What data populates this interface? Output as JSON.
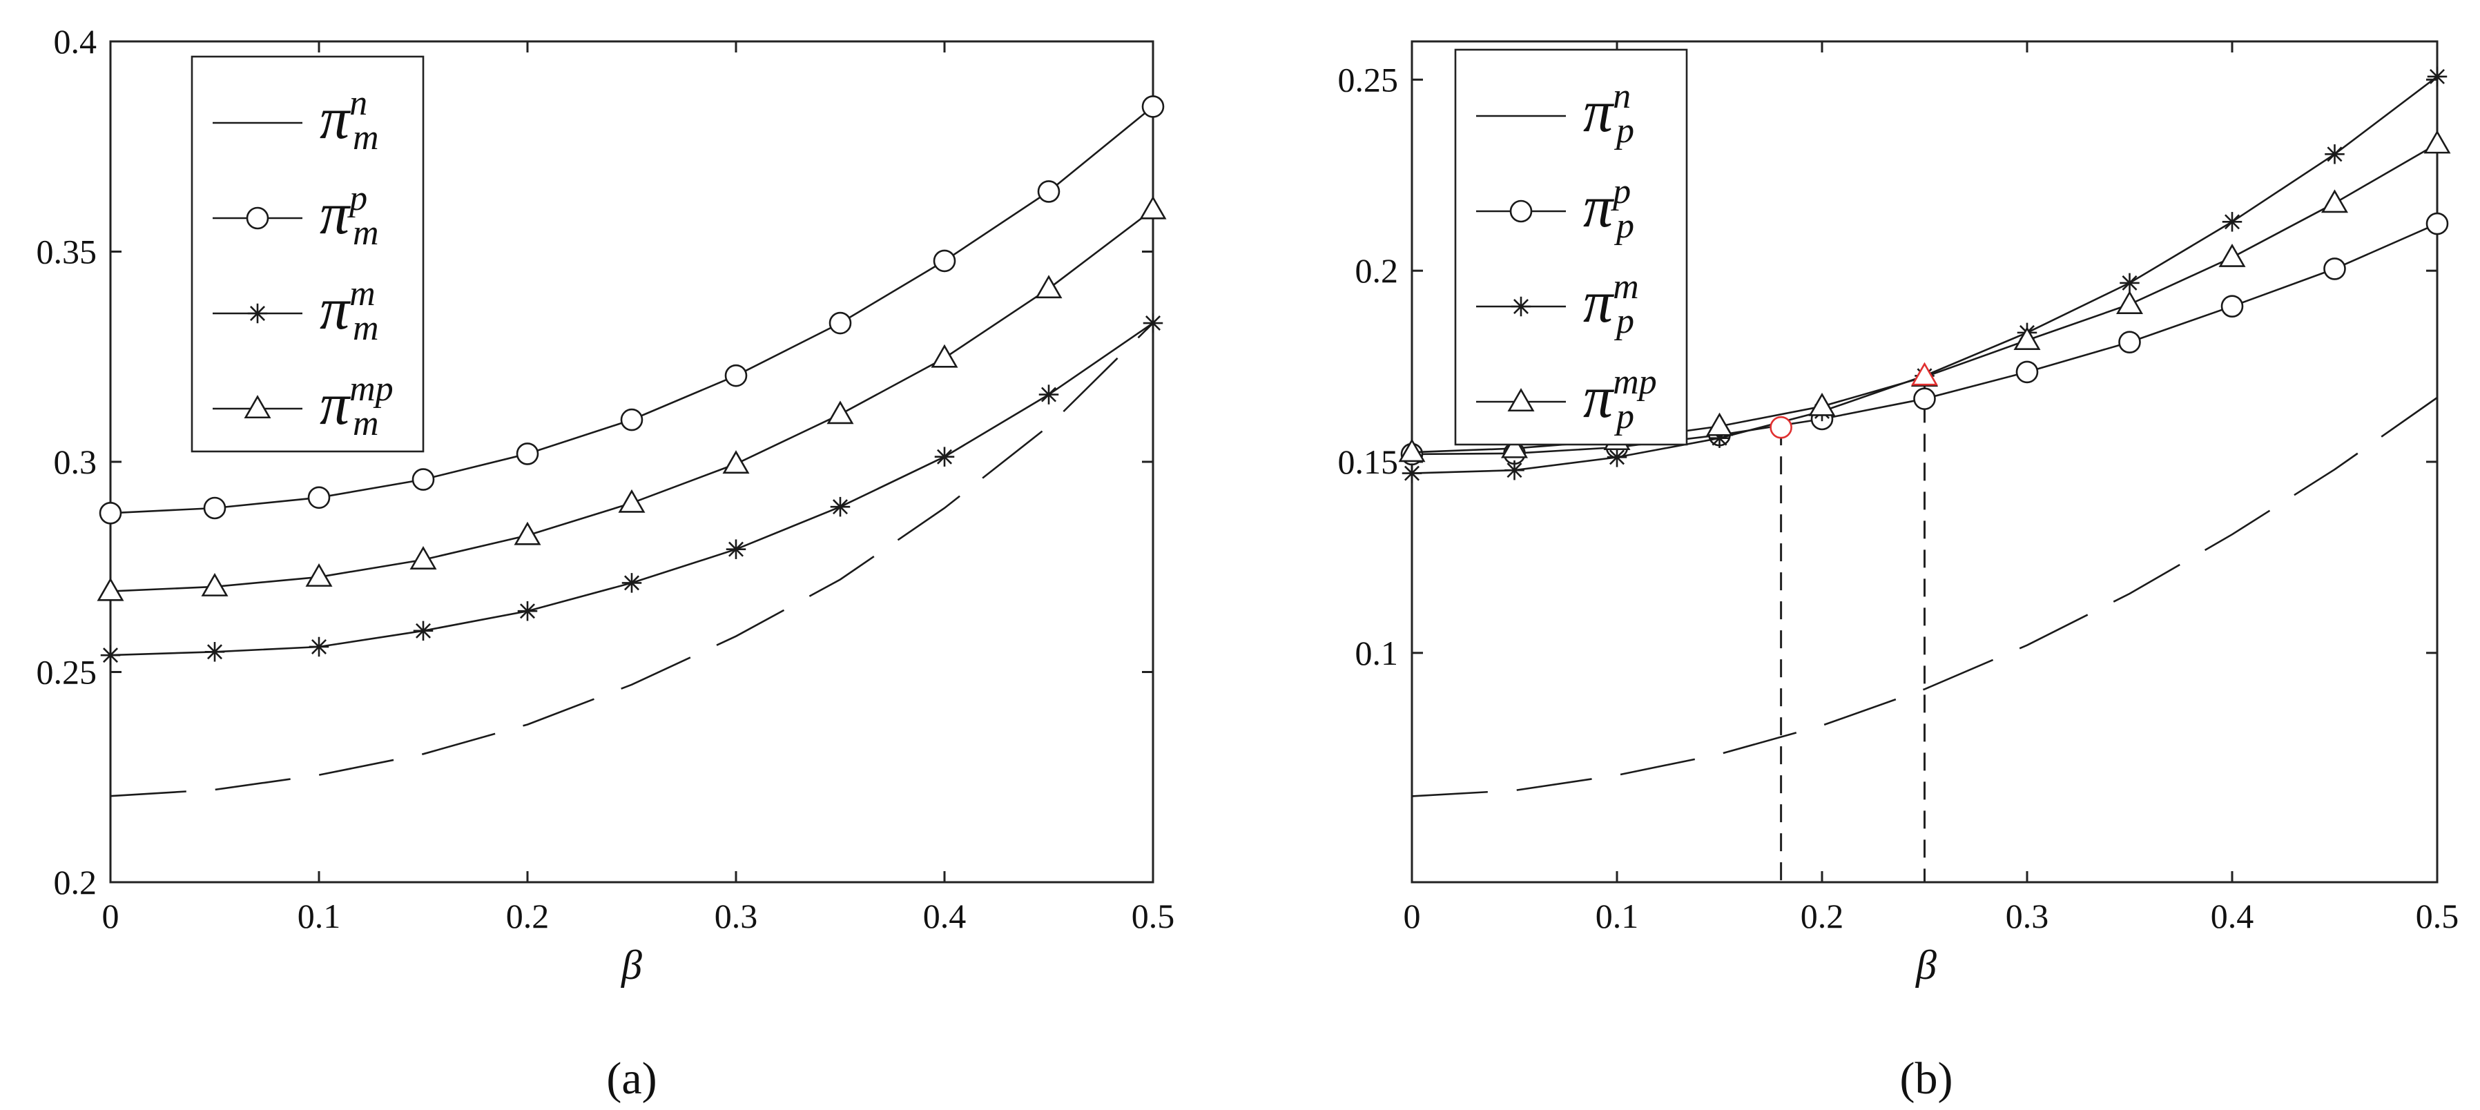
{
  "chart_data": [
    {
      "panel": "(a)",
      "type": "line",
      "xlabel": "β",
      "ylabel": "",
      "xlim": [
        0,
        0.5
      ],
      "ylim": [
        0.2,
        0.4
      ],
      "xticks": [
        "0",
        "0.1",
        "0.2",
        "0.3",
        "0.4",
        "0.5"
      ],
      "yticks": [
        "0.2",
        "0.25",
        "0.3",
        "0.35",
        "0.4"
      ],
      "legend_position": "top-left",
      "series": [
        {
          "name": "π",
          "sup": "n",
          "sub": "m",
          "marker": "none",
          "line": "dashed",
          "x": [
            0,
            0.05,
            0.1,
            0.15,
            0.2,
            0.25,
            0.3,
            0.35,
            0.4,
            0.45,
            0.5
          ],
          "y": [
            0.2205,
            0.222,
            0.2255,
            0.2305,
            0.2375,
            0.247,
            0.2585,
            0.272,
            0.289,
            0.3085,
            0.333
          ]
        },
        {
          "name": "π",
          "sup": "p",
          "sub": "m",
          "marker": "circle",
          "line": "solid",
          "x": [
            0,
            0.05,
            0.1,
            0.15,
            0.2,
            0.25,
            0.3,
            0.35,
            0.4,
            0.45,
            0.5
          ],
          "y": [
            0.2878,
            0.289,
            0.2915,
            0.2958,
            0.3019,
            0.31,
            0.3205,
            0.333,
            0.3478,
            0.3643,
            0.3845
          ]
        },
        {
          "name": "π",
          "sup": "m",
          "sub": "m",
          "marker": "asterisk",
          "line": "solid",
          "x": [
            0,
            0.05,
            0.1,
            0.15,
            0.2,
            0.25,
            0.3,
            0.35,
            0.4,
            0.45,
            0.5
          ],
          "y": [
            0.254,
            0.2548,
            0.256,
            0.2598,
            0.2645,
            0.2712,
            0.2792,
            0.2893,
            0.3012,
            0.316,
            0.333
          ]
        },
        {
          "name": "π",
          "sup": "mp",
          "sub": "m",
          "marker": "triangle",
          "line": "solid",
          "x": [
            0,
            0.05,
            0.1,
            0.15,
            0.2,
            0.25,
            0.3,
            0.35,
            0.4,
            0.45,
            0.5
          ],
          "y": [
            0.2692,
            0.2703,
            0.2726,
            0.2767,
            0.2825,
            0.2902,
            0.2995,
            0.3113,
            0.3247,
            0.3412,
            0.36
          ]
        }
      ],
      "caption": "(a)"
    },
    {
      "panel": "(b)",
      "type": "line",
      "xlabel": "β",
      "ylabel": "",
      "xlim": [
        0,
        0.5
      ],
      "ylim": [
        0.04,
        0.26
      ],
      "xticks": [
        "0",
        "0.1",
        "0.2",
        "0.3",
        "0.4",
        "0.5"
      ],
      "yticks": [
        "0.1",
        "0.15",
        "0.2",
        "0.25"
      ],
      "legend_position": "top-left",
      "series": [
        {
          "name": "π",
          "sup": "n",
          "sub": "p",
          "marker": "none",
          "line": "dashed",
          "x": [
            0,
            0.05,
            0.1,
            0.15,
            0.2,
            0.25,
            0.3,
            0.35,
            0.4,
            0.45,
            0.5
          ],
          "y": [
            0.0625,
            0.064,
            0.068,
            0.0735,
            0.081,
            0.0905,
            0.102,
            0.1155,
            0.131,
            0.148,
            0.1668
          ]
        },
        {
          "name": "π",
          "sup": "p",
          "sub": "p",
          "marker": "circle",
          "line": "solid",
          "x": [
            0,
            0.05,
            0.1,
            0.15,
            0.2,
            0.25,
            0.3,
            0.35,
            0.4,
            0.45,
            0.5
          ],
          "y": [
            0.152,
            0.1522,
            0.1538,
            0.157,
            0.1612,
            0.1665,
            0.1735,
            0.1813,
            0.1907,
            0.2005,
            0.2123
          ]
        },
        {
          "name": "π",
          "sup": "m",
          "sub": "p",
          "marker": "asterisk",
          "line": "solid",
          "x": [
            0,
            0.05,
            0.1,
            0.15,
            0.2,
            0.25,
            0.3,
            0.35,
            0.4,
            0.45,
            0.5
          ],
          "y": [
            0.147,
            0.1478,
            0.1512,
            0.1562,
            0.1632,
            0.1725,
            0.1838,
            0.1968,
            0.2128,
            0.2305,
            0.2508
          ]
        },
        {
          "name": "π",
          "sup": "mp",
          "sub": "p",
          "marker": "triangle",
          "line": "solid",
          "x": [
            0,
            0.05,
            0.1,
            0.15,
            0.2,
            0.25,
            0.3,
            0.35,
            0.4,
            0.45,
            0.5
          ],
          "y": [
            0.1525,
            0.1535,
            0.1556,
            0.1593,
            0.1645,
            0.1722,
            0.1818,
            0.1912,
            0.2035,
            0.2177,
            0.2332
          ]
        }
      ],
      "intersections": [
        {
          "x": 0.18,
          "y": 0.159,
          "color": "#e03030",
          "marker": "circle"
        },
        {
          "x": 0.25,
          "y": 0.1725,
          "color": "#e03030",
          "marker": "triangle"
        }
      ],
      "caption": "(b)"
    }
  ]
}
